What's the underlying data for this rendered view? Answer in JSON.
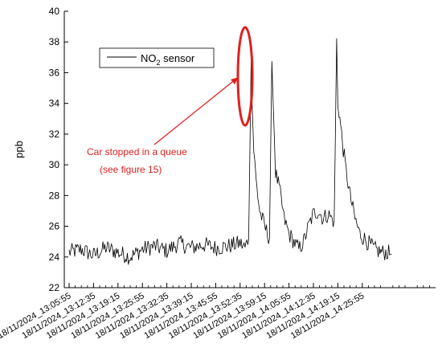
{
  "chart_data": {
    "type": "line",
    "xlabel": "",
    "ylabel": "ppb",
    "ylim": [
      22,
      40
    ],
    "yticks": [
      22,
      24,
      26,
      28,
      30,
      32,
      34,
      36,
      38,
      40
    ],
    "x_ticks": [
      "18/11/2024_13:05:55",
      "18/11/2024_13:12:35",
      "18/11/2024_13:19:15",
      "18/11/2024_13:25:55",
      "18/11/2024_13:32:35",
      "18/11/2024_13:39:15",
      "18/11/2024_13:45:55",
      "18/11/2024_13:52:35",
      "18/11/2024_13:59:15",
      "18/11/2024_14:05:55",
      "18/11/2024_14:12:35",
      "18/11/2024_14:19:15",
      "18/11/2024_14:25:55"
    ],
    "legend": {
      "label_main": "NO",
      "label_sub": "2",
      "label_tail": " sensor",
      "placement": "top-left"
    },
    "series": [
      {
        "name": "NO2 sensor",
        "color": "#000000",
        "x_index": [
          0.0,
          0.5,
          1.0,
          1.5,
          2.0,
          2.5,
          3.0,
          3.5,
          4.0,
          4.5,
          5.0,
          5.5,
          6.0,
          6.5,
          7.0,
          7.2,
          7.35,
          7.45,
          7.5,
          7.56,
          7.65,
          7.8,
          8.0,
          8.2,
          8.3,
          8.45,
          8.6,
          8.8,
          9.0,
          9.2,
          9.4,
          9.6,
          9.8,
          10.0,
          10.2,
          10.4,
          10.6,
          10.85,
          10.95,
          11.0,
          11.05,
          11.15,
          11.3,
          11.5,
          11.7,
          11.9,
          12.2,
          12.5,
          12.8,
          13.0,
          13.2
        ],
        "values": [
          24.3,
          24.5,
          24.1,
          24.6,
          24.3,
          24.0,
          24.5,
          24.7,
          24.4,
          24.9,
          24.6,
          24.8,
          24.6,
          24.7,
          24.9,
          24.6,
          25.2,
          37.0,
          33.5,
          31.0,
          29.0,
          27.0,
          26.0,
          25.2,
          36.6,
          29.5,
          28.5,
          26.5,
          25.5,
          25.0,
          24.5,
          25.0,
          26.0,
          26.8,
          27.0,
          26.5,
          26.8,
          26.3,
          38.2,
          34.0,
          33.5,
          32.0,
          30.0,
          28.0,
          26.5,
          25.5,
          25.0,
          24.5,
          24.3,
          24.3,
          24.2
        ]
      }
    ],
    "annotation": {
      "line1": "Car stopped in a queue",
      "line2": "(see figure 15)",
      "color": "#e02020"
    }
  }
}
